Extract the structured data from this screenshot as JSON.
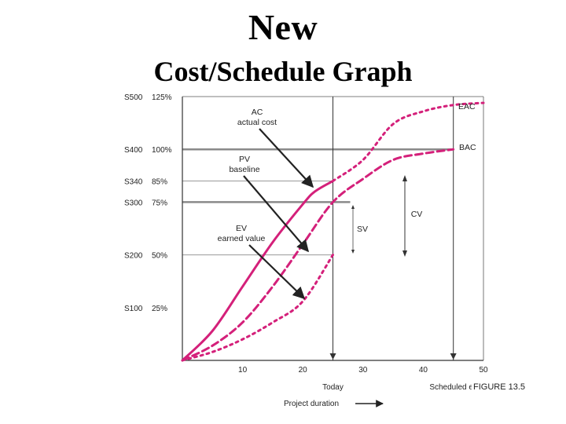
{
  "title": "New",
  "subtitle": "Cost/Schedule Graph",
  "figure_label": "FIGURE 13.5",
  "chart_data": {
    "type": "line",
    "xlim": [
      0,
      50
    ],
    "ylim": [
      0,
      125
    ],
    "x_ticks": [
      {
        "v": 10,
        "label": "10"
      },
      {
        "v": 20,
        "label": "20"
      },
      {
        "v": 30,
        "label": "30"
      },
      {
        "v": 40,
        "label": "40"
      },
      {
        "v": 50,
        "label": "50"
      }
    ],
    "y_ticks": [
      {
        "v": 125,
        "dollar": "S500",
        "pct": "125%"
      },
      {
        "v": 100,
        "dollar": "S400",
        "pct": "100%"
      },
      {
        "v": 85,
        "dollar": "S340",
        "pct": "85%"
      },
      {
        "v": 75,
        "dollar": "S300",
        "pct": "75%"
      },
      {
        "v": 50,
        "dollar": "S200",
        "pct": "50%"
      },
      {
        "v": 25,
        "dollar": "S100",
        "pct": "25%"
      }
    ],
    "gridlines_y": [
      100,
      85,
      75,
      50
    ],
    "today_x": 25,
    "scheduled_end_x": 45,
    "today_label": "Today",
    "scheduled_end_label": "Scheduled end",
    "xlabel": "Project duration",
    "series": [
      {
        "name": "AC",
        "style": "solid",
        "color": "#d4207a",
        "x": [
          0,
          5,
          10,
          15,
          20,
          22,
          25
        ],
        "y": [
          0,
          14,
          35,
          56,
          74,
          80,
          85
        ]
      },
      {
        "name": "PV",
        "style": "dashed",
        "color": "#d4207a",
        "x": [
          0,
          5,
          10,
          15,
          20,
          25,
          30,
          35,
          40,
          45
        ],
        "y": [
          0,
          7,
          18,
          35,
          55,
          75,
          86,
          95,
          98,
          100
        ]
      },
      {
        "name": "EV",
        "style": "dotted",
        "color": "#d4207a",
        "x": [
          0,
          5,
          10,
          15,
          20,
          25
        ],
        "y": [
          0,
          4,
          10,
          18,
          28,
          50
        ]
      },
      {
        "name": "EAC",
        "style": "dotted",
        "color": "#d4207a",
        "x": [
          25,
          30,
          35,
          40,
          45,
          50
        ],
        "y": [
          85,
          95,
          112,
          118,
          121,
          122
        ]
      }
    ],
    "annotations": [
      {
        "line1": "AC",
        "line2": "actual cost"
      },
      {
        "line1": "PV",
        "line2": "baseline"
      },
      {
        "line1": "EV",
        "line2": "earned value"
      },
      {
        "line1": "SV"
      },
      {
        "line1": "CV"
      },
      {
        "line1": "EAC"
      },
      {
        "line1": "BAC"
      }
    ]
  }
}
